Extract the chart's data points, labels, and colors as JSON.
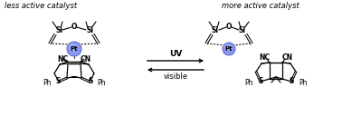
{
  "bg_color": "#ffffff",
  "left_label": "less active catalyst",
  "right_label": "more active catalyst",
  "uv_label": "UV",
  "visible_label": "visible",
  "pt_color_main": "#8899ee",
  "pt_color_light": "#aabbff",
  "pt_color_edge": "#5566cc",
  "pt_label": "Pt",
  "si_label": "Si",
  "o_label": "O",
  "nc_label": "NC",
  "cn_label": "CN",
  "ph_label": "Ph",
  "s_label": "S",
  "figw": 3.78,
  "figh": 1.5,
  "dpi": 100
}
